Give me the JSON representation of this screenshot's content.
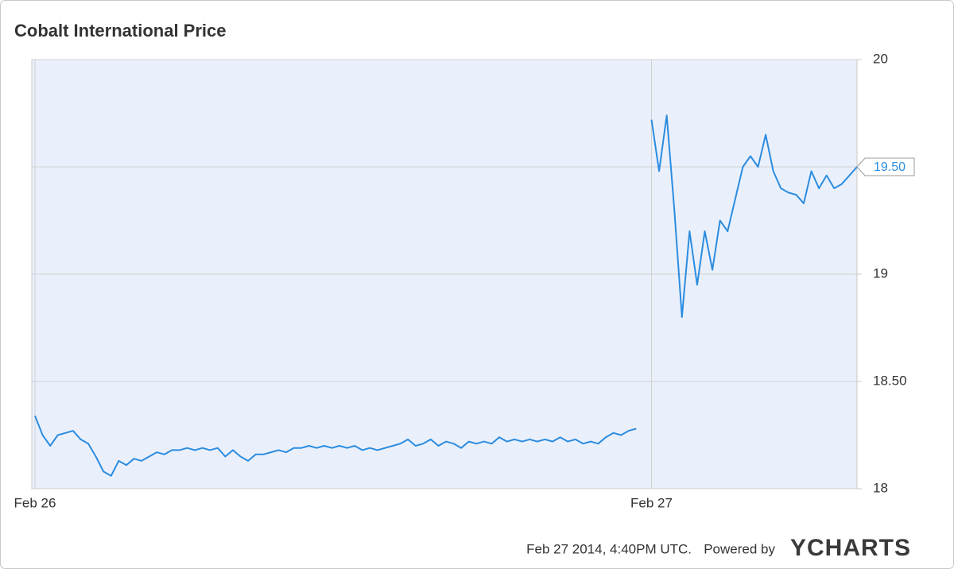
{
  "chart_data": {
    "type": "line",
    "title": "Cobalt International Price",
    "categories": [
      "Feb 26",
      null,
      null,
      null,
      null,
      null,
      null,
      null,
      null,
      null,
      null,
      null,
      null,
      null,
      null,
      null,
      null,
      null,
      null,
      null,
      null,
      null,
      null,
      null,
      null,
      null,
      null,
      null,
      null,
      null,
      null,
      null,
      null,
      null,
      null,
      null,
      null,
      null,
      null,
      null,
      null,
      null,
      null,
      null,
      null,
      null,
      null,
      null,
      null,
      null,
      null,
      null,
      null,
      null,
      null,
      null,
      null,
      null,
      null,
      null,
      null,
      null,
      null,
      null,
      null,
      null,
      null,
      null,
      null,
      null,
      null,
      null,
      null,
      null,
      null,
      null,
      null,
      null,
      null,
      null,
      null,
      "Feb 27",
      null,
      null,
      null,
      null,
      null,
      null,
      null,
      null,
      null,
      null,
      null,
      null,
      null,
      null,
      null,
      null,
      null,
      null,
      null,
      null,
      null,
      null,
      null,
      null,
      null,
      null,
      null
    ],
    "values": [
      18.34,
      18.25,
      18.2,
      18.25,
      18.26,
      18.27,
      18.23,
      18.21,
      18.15,
      18.08,
      18.06,
      18.13,
      18.11,
      18.14,
      18.13,
      18.15,
      18.17,
      18.16,
      18.18,
      18.18,
      18.19,
      18.18,
      18.19,
      18.18,
      18.19,
      18.15,
      18.18,
      18.15,
      18.13,
      18.16,
      18.16,
      18.17,
      18.18,
      18.17,
      18.19,
      18.19,
      18.2,
      18.19,
      18.2,
      18.19,
      18.2,
      18.19,
      18.2,
      18.18,
      18.19,
      18.18,
      18.19,
      18.2,
      18.21,
      18.23,
      18.2,
      18.21,
      18.23,
      18.2,
      18.22,
      18.21,
      18.19,
      18.22,
      18.21,
      18.22,
      18.21,
      18.24,
      18.22,
      18.23,
      18.22,
      18.23,
      18.22,
      18.23,
      18.22,
      18.24,
      18.22,
      18.23,
      18.21,
      18.22,
      18.21,
      18.24,
      18.26,
      18.25,
      18.27,
      18.28,
      null,
      19.72,
      19.48,
      19.74,
      19.3,
      18.8,
      19.2,
      18.95,
      19.2,
      19.02,
      19.25,
      19.2,
      19.35,
      19.5,
      19.55,
      19.5,
      19.65,
      19.48,
      19.4,
      19.38,
      19.37,
      19.33,
      19.48,
      19.4,
      19.46,
      19.4,
      19.42,
      19.46,
      19.5
    ],
    "value_labels": [
      null,
      null,
      null,
      null,
      null,
      null,
      null,
      null,
      null,
      null,
      null,
      null,
      null,
      null,
      null,
      null,
      null,
      null,
      null,
      null,
      null,
      null,
      null,
      null,
      null,
      null,
      null,
      null,
      null,
      null,
      null,
      null,
      null,
      null,
      null,
      null,
      null,
      null,
      null,
      null,
      null,
      null,
      null,
      null,
      null,
      null,
      null,
      null,
      null,
      null,
      null,
      null,
      null,
      null,
      null,
      null,
      null,
      null,
      null,
      null,
      null,
      null,
      null,
      null,
      null,
      null,
      null,
      null,
      null,
      null,
      null,
      null,
      null,
      null,
      null,
      null,
      null,
      null,
      null,
      null,
      null,
      null,
      null,
      null,
      null,
      null,
      null,
      null,
      null,
      null,
      null,
      null,
      null,
      null,
      null,
      null,
      null,
      null,
      null,
      null,
      null,
      null,
      null,
      null,
      null,
      null,
      null,
      null,
      "19.50"
    ],
    "color": "#2b8ce0",
    "ylim": [
      18,
      20
    ],
    "yticks": [
      18,
      {
        "value": 18.5,
        "label": "18.50"
      },
      19,
      {
        "value": 19.5,
        "label": "19.50"
      },
      20
    ],
    "grid": true,
    "footer": {
      "timestamp": "Feb 27 2014, 4:40PM UTC.",
      "powered_by": "Powered by",
      "logo": "YCHARTS"
    }
  }
}
